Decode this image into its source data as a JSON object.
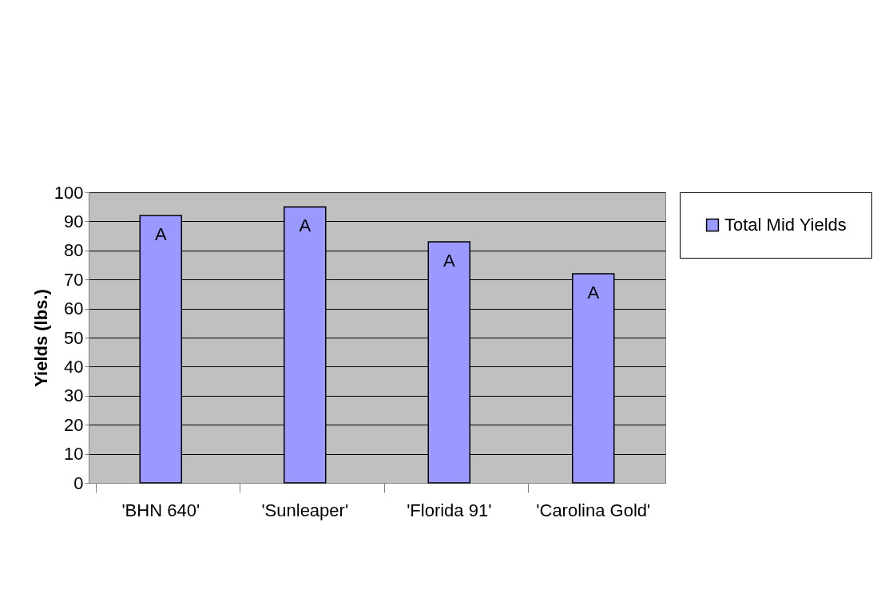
{
  "chart_data": {
    "type": "bar",
    "categories": [
      "'BHN 640'",
      "'Sunleaper'",
      "'Florida 91'",
      "'Carolina Gold'"
    ],
    "series": [
      {
        "name": "Total Mid Yields",
        "color": "#9999ff",
        "values": [
          92,
          95,
          83,
          72
        ]
      }
    ],
    "ylabel": "Yields (lbs.)",
    "ylim": [
      0,
      100
    ],
    "yticks": [
      0,
      10,
      20,
      30,
      40,
      50,
      60,
      70,
      80,
      90,
      100
    ],
    "grid": "y",
    "legend": "right",
    "annotations": [
      {
        "text": "A",
        "x": "'BHN 640'",
        "y": 92
      },
      {
        "text": "A",
        "x": "'Sunleaper'",
        "y": 95
      },
      {
        "text": "A",
        "x": "'Florida 91'",
        "y": 83
      },
      {
        "text": "A",
        "x": "'Carolina Gold'",
        "y": 72
      }
    ]
  }
}
